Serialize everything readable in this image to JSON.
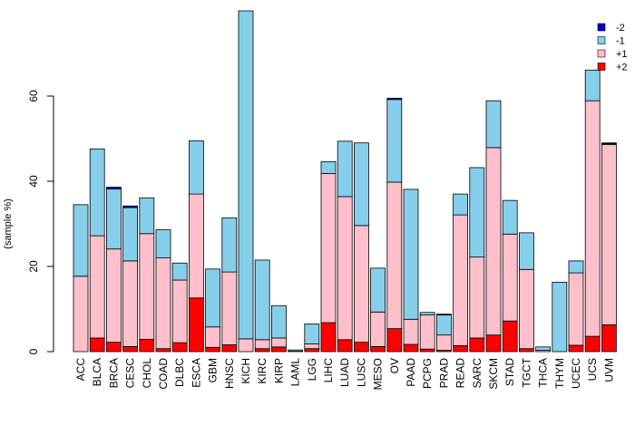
{
  "chart_data": {
    "type": "bar",
    "stacked": true,
    "title": "",
    "xlabel": "",
    "ylabel": "(sample %)",
    "ylim": [
      0,
      80
    ],
    "yticks": [
      0,
      20,
      40,
      60
    ],
    "legend_position": "top-right",
    "categories": [
      "ACC",
      "BLCA",
      "BRCA",
      "CESC",
      "CHOL",
      "COAD",
      "DLBC",
      "ESCA",
      "GBM",
      "HNSC",
      "KICH",
      "KIRC",
      "KIRP",
      "LAML",
      "LGG",
      "LIHC",
      "LUAD",
      "LUSC",
      "MESO",
      "OV",
      "PAAD",
      "PCPG",
      "PRAD",
      "READ",
      "SARC",
      "SKCM",
      "STAD",
      "TGCT",
      "THCA",
      "THYM",
      "UCEC",
      "UCS",
      "UVM"
    ],
    "series": [
      {
        "name": "+2",
        "color": "#ff0000",
        "values": [
          0,
          3.2,
          2.2,
          1.2,
          2.9,
          0.7,
          2.1,
          12.6,
          1.0,
          1.6,
          0,
          0.7,
          1.1,
          0,
          0.7,
          6.8,
          2.8,
          2.2,
          1.2,
          5.4,
          1.7,
          0.6,
          0.3,
          1.4,
          3.2,
          3.9,
          7.2,
          0.7,
          0,
          0,
          1.5,
          3.6,
          6.3
        ]
      },
      {
        "name": "+1",
        "color": "#ffc0cb",
        "values": [
          17.7,
          24.0,
          21.9,
          20.1,
          24.8,
          21.3,
          14.7,
          24.4,
          4.8,
          17.1,
          3.0,
          2.1,
          2.1,
          0.1,
          1.1,
          35.0,
          33.6,
          27.4,
          8.1,
          34.4,
          5.9,
          8.0,
          3.6,
          30.7,
          19.0,
          44.0,
          20.4,
          18.6,
          0.3,
          0,
          17.0,
          55.3,
          42.3
        ]
      },
      {
        "name": "-1",
        "color": "#87ceeb",
        "values": [
          16.8,
          20.4,
          14.1,
          12.5,
          8.4,
          6.6,
          4.0,
          12.5,
          13.6,
          12.7,
          77.0,
          18.7,
          7.6,
          0.3,
          4.7,
          2.8,
          13.0,
          19.4,
          10.3,
          19.4,
          30.5,
          0.6,
          4.7,
          4.9,
          21.0,
          11.0,
          7.9,
          8.6,
          0.8,
          16.3,
          2.8,
          7.2,
          0.2
        ]
      },
      {
        "name": "-2",
        "color": "#0000cd",
        "values": [
          0,
          0,
          0.4,
          0.4,
          0,
          0,
          0,
          0,
          0,
          0,
          0,
          0,
          0,
          0,
          0,
          0,
          0,
          0,
          0,
          0.3,
          0,
          0,
          0.2,
          0,
          0,
          0,
          0,
          0,
          0,
          0,
          0,
          0,
          0.2
        ]
      }
    ],
    "legend_order": [
      "-2",
      "-1",
      "+1",
      "+2"
    ]
  }
}
